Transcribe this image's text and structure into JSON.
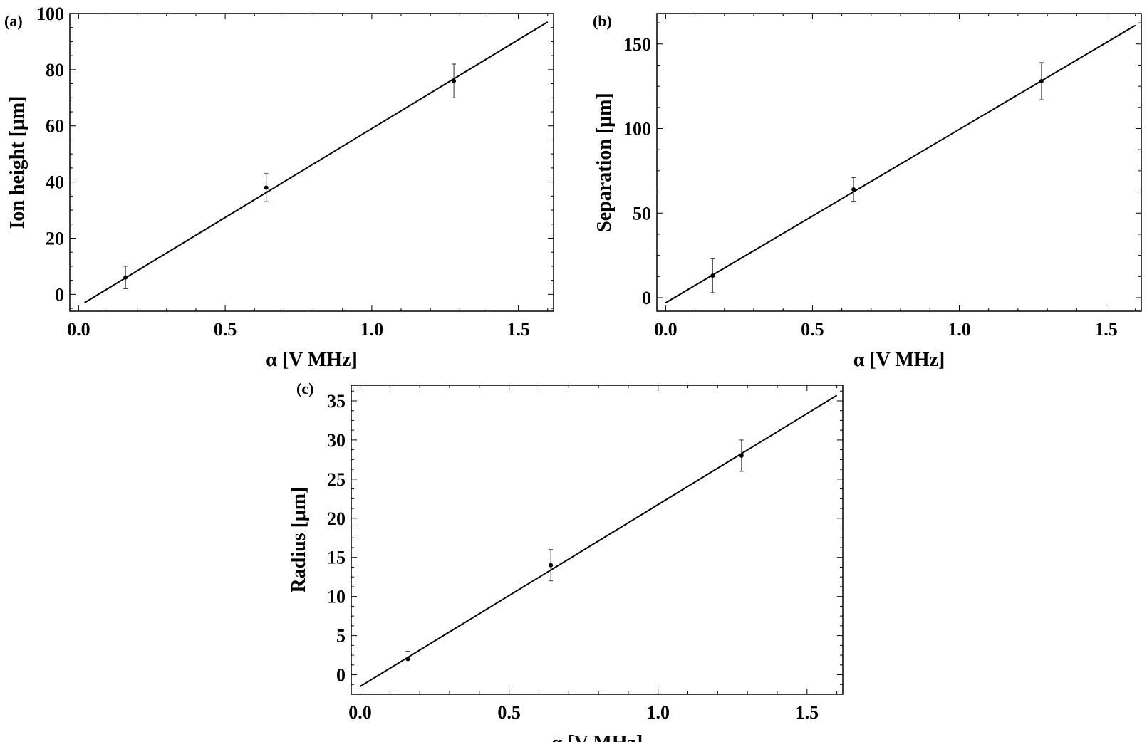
{
  "chart_data": [
    {
      "panel_label": "(a)",
      "type": "scatter",
      "ylabel": "Ion height [μm]",
      "xlabel": "α [V MHz]",
      "xlim": [
        -0.03,
        1.62
      ],
      "ylim": [
        -6,
        100
      ],
      "xticks": [
        "0.0",
        "0.5",
        "1.0",
        "1.5"
      ],
      "yticks": [
        "0",
        "20",
        "40",
        "60",
        "80",
        "100"
      ],
      "points": [
        {
          "x": 0.16,
          "y": 6,
          "err": 4
        },
        {
          "x": 0.64,
          "y": 38,
          "err": 5
        },
        {
          "x": 1.28,
          "y": 76,
          "err": 6
        }
      ],
      "fit_line": {
        "x": [
          0.02,
          1.6
        ],
        "y": [
          -3,
          97
        ]
      },
      "grid": false
    },
    {
      "panel_label": "(b)",
      "type": "scatter",
      "ylabel": "Separation [μm]",
      "xlabel": "α [V MHz]",
      "xlim": [
        -0.03,
        1.62
      ],
      "ylim": [
        -8,
        168
      ],
      "xticks": [
        "0.0",
        "0.5",
        "1.0",
        "1.5"
      ],
      "yticks": [
        "0",
        "50",
        "100",
        "150"
      ],
      "points": [
        {
          "x": 0.16,
          "y": 13,
          "err": 10
        },
        {
          "x": 0.64,
          "y": 64,
          "err": 7
        },
        {
          "x": 1.28,
          "y": 128,
          "err": 11
        }
      ],
      "fit_line": {
        "x": [
          0.0,
          1.6
        ],
        "y": [
          -3,
          161
        ]
      },
      "grid": false
    },
    {
      "panel_label": "(c)",
      "type": "scatter",
      "ylabel": "Radius [μm]",
      "xlabel": "α [V MHz]",
      "xlim": [
        -0.03,
        1.62
      ],
      "ylim": [
        -2.5,
        37
      ],
      "xticks": [
        "0.0",
        "0.5",
        "1.0",
        "1.5"
      ],
      "yticks": [
        "0",
        "5",
        "10",
        "15",
        "20",
        "25",
        "30",
        "35"
      ],
      "points": [
        {
          "x": 0.16,
          "y": 2,
          "err": 1
        },
        {
          "x": 0.64,
          "y": 14,
          "err": 2
        },
        {
          "x": 1.28,
          "y": 28,
          "err": 2
        }
      ],
      "fit_line": {
        "x": [
          0.0,
          1.6
        ],
        "y": [
          -1.5,
          35.7
        ]
      },
      "grid": false
    }
  ]
}
